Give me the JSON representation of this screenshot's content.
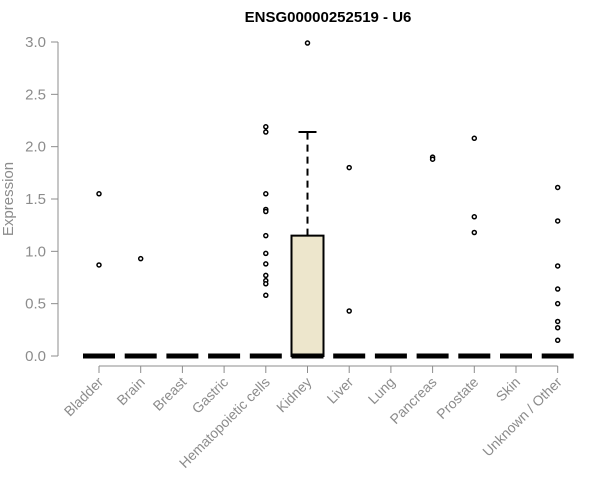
{
  "chart_data": {
    "type": "boxplot",
    "title": "ENSG00000252519 - U6",
    "ylabel": "Expression",
    "xlabel": "",
    "ylim": [
      0,
      3.0
    ],
    "yticks": [
      "0.0",
      "0.5",
      "1.0",
      "1.5",
      "2.0",
      "2.5",
      "3.0"
    ],
    "grid": false,
    "box_fill": "#ede6cc",
    "categories": [
      "Bladder",
      "Brain",
      "Breast",
      "Gastric",
      "Hematopoietic cells",
      "Kidney",
      "Liver",
      "Lung",
      "Pancreas",
      "Prostate",
      "Skin",
      "Unknown / Other"
    ],
    "series": [
      {
        "category": "Bladder",
        "q1": 0,
        "median": 0,
        "q3": 0,
        "whisker_low": 0,
        "whisker_high": 0,
        "outliers": [
          1.55,
          0.87
        ]
      },
      {
        "category": "Brain",
        "q1": 0,
        "median": 0,
        "q3": 0,
        "whisker_low": 0,
        "whisker_high": 0,
        "outliers": [
          0.93
        ]
      },
      {
        "category": "Breast",
        "q1": 0,
        "median": 0,
        "q3": 0,
        "whisker_low": 0,
        "whisker_high": 0,
        "outliers": []
      },
      {
        "category": "Gastric",
        "q1": 0,
        "median": 0,
        "q3": 0,
        "whisker_low": 0,
        "whisker_high": 0,
        "outliers": []
      },
      {
        "category": "Hematopoietic cells",
        "q1": 0,
        "median": 0,
        "q3": 0,
        "whisker_low": 0,
        "whisker_high": 0,
        "outliers": [
          2.19,
          2.14,
          1.55,
          1.4,
          1.38,
          1.15,
          0.98,
          0.88,
          0.77,
          0.72,
          0.69,
          0.58
        ]
      },
      {
        "category": "Kidney",
        "q1": 0,
        "median": 0,
        "q3": 1.15,
        "whisker_low": 0,
        "whisker_high": 2.14,
        "outliers": [
          2.99
        ]
      },
      {
        "category": "Liver",
        "q1": 0,
        "median": 0,
        "q3": 0,
        "whisker_low": 0,
        "whisker_high": 0,
        "outliers": [
          1.8,
          0.43
        ]
      },
      {
        "category": "Lung",
        "q1": 0,
        "median": 0,
        "q3": 0,
        "whisker_low": 0,
        "whisker_high": 0,
        "outliers": []
      },
      {
        "category": "Pancreas",
        "q1": 0,
        "median": 0,
        "q3": 0,
        "whisker_low": 0,
        "whisker_high": 0,
        "outliers": [
          1.9,
          1.88
        ]
      },
      {
        "category": "Prostate",
        "q1": 0,
        "median": 0,
        "q3": 0,
        "whisker_low": 0,
        "whisker_high": 0,
        "outliers": [
          2.08,
          1.33,
          1.18
        ]
      },
      {
        "category": "Skin",
        "q1": 0,
        "median": 0,
        "q3": 0,
        "whisker_low": 0,
        "whisker_high": 0,
        "outliers": []
      },
      {
        "category": "Unknown / Other",
        "q1": 0,
        "median": 0,
        "q3": 0,
        "whisker_low": 0,
        "whisker_high": 0,
        "outliers": [
          1.61,
          1.29,
          0.86,
          0.64,
          0.5,
          0.33,
          0.27,
          0.15
        ]
      }
    ]
  }
}
